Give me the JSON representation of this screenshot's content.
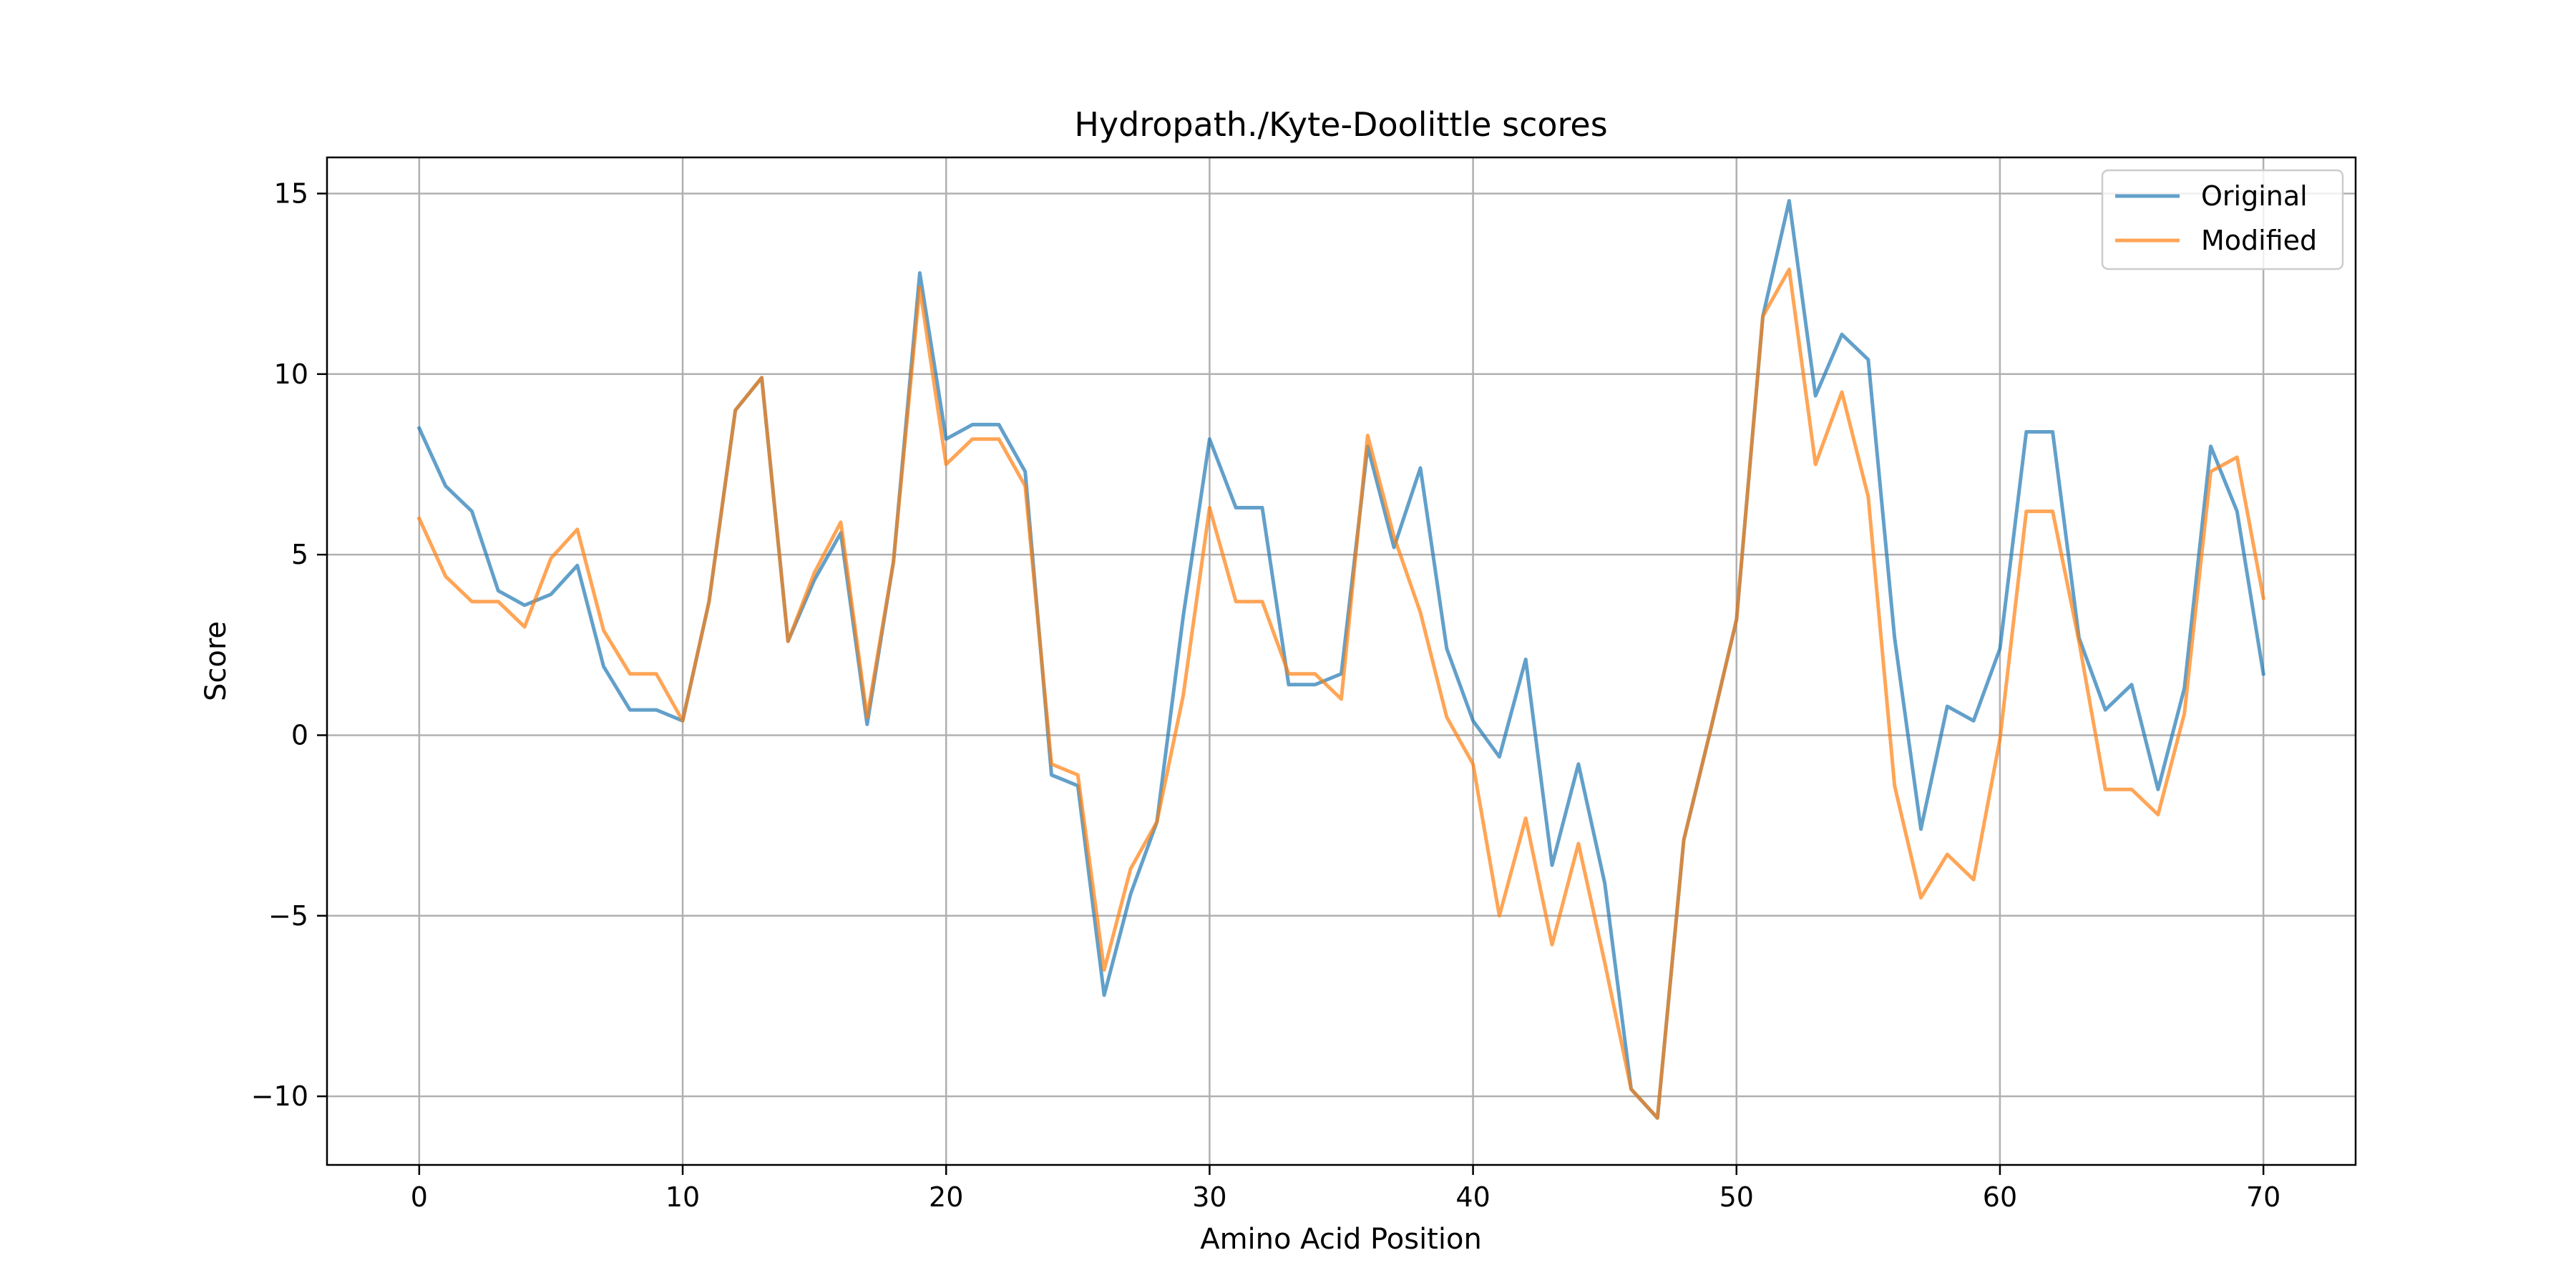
{
  "chart_data": {
    "type": "line",
    "title": "Hydropath./Kyte-Doolittle scores",
    "xlabel": "Amino Acid Position",
    "ylabel": "Score",
    "xlim": [
      -3.5,
      73.5
    ],
    "ylim": [
      -11.9,
      16.0
    ],
    "xticks": [
      0,
      10,
      20,
      30,
      40,
      50,
      60,
      70
    ],
    "yticks": [
      -10,
      -5,
      0,
      5,
      10,
      15
    ],
    "grid": true,
    "legend_position": "top-right",
    "x": [
      0,
      1,
      2,
      3,
      4,
      5,
      6,
      7,
      8,
      9,
      10,
      11,
      12,
      13,
      14,
      15,
      16,
      17,
      18,
      19,
      20,
      21,
      22,
      23,
      24,
      25,
      26,
      27,
      28,
      29,
      30,
      31,
      32,
      33,
      34,
      35,
      36,
      37,
      38,
      39,
      40,
      41,
      42,
      43,
      44,
      45,
      46,
      47,
      48,
      49,
      50,
      51,
      52,
      53,
      54,
      55,
      56,
      57,
      58,
      59,
      60,
      61,
      62,
      63,
      64,
      65,
      66,
      67,
      68,
      69,
      70
    ],
    "series": [
      {
        "name": "Original",
        "color": "#1f77b4",
        "values": [
          8.5,
          6.9,
          6.2,
          4.0,
          3.6,
          3.9,
          4.7,
          1.9,
          0.7,
          0.7,
          0.4,
          3.7,
          9.0,
          9.9,
          2.6,
          4.3,
          5.6,
          0.3,
          4.8,
          12.8,
          8.2,
          8.6,
          8.6,
          7.3,
          -1.1,
          -1.4,
          -7.2,
          -4.4,
          -2.4,
          3.3,
          8.2,
          6.3,
          6.3,
          1.4,
          1.4,
          1.7,
          8.0,
          5.2,
          7.4,
          2.4,
          0.4,
          -0.6,
          2.1,
          -3.6,
          -0.8,
          -4.1,
          -9.8,
          -10.6,
          -2.9,
          0.1,
          3.2,
          11.6,
          14.8,
          9.4,
          11.1,
          10.4,
          2.7,
          -2.6,
          0.8,
          0.4,
          2.4,
          8.4,
          8.4,
          2.7,
          0.7,
          1.4,
          -1.5,
          1.3,
          8.0,
          6.2,
          1.7
        ]
      },
      {
        "name": "Modified",
        "color": "#ff7f0e",
        "values": [
          6.0,
          4.4,
          3.7,
          3.7,
          3.0,
          4.9,
          5.7,
          2.9,
          1.7,
          1.7,
          0.4,
          3.7,
          9.0,
          9.9,
          2.6,
          4.5,
          5.9,
          0.5,
          4.8,
          12.4,
          7.5,
          8.2,
          8.2,
          6.9,
          -0.8,
          -1.1,
          -6.5,
          -3.7,
          -2.4,
          1.1,
          6.3,
          3.7,
          3.7,
          1.7,
          1.7,
          1.0,
          8.3,
          5.5,
          3.4,
          0.5,
          -0.8,
          -5.0,
          -2.3,
          -5.8,
          -3.0,
          -6.3,
          -9.8,
          -10.6,
          -2.9,
          0.1,
          3.2,
          11.6,
          12.9,
          7.5,
          9.5,
          6.6,
          -1.4,
          -4.5,
          -3.3,
          -4.0,
          -0.1,
          6.2,
          6.2,
          2.6,
          -1.5,
          -1.5,
          -2.2,
          0.6,
          7.3,
          7.7,
          3.8
        ]
      }
    ]
  }
}
